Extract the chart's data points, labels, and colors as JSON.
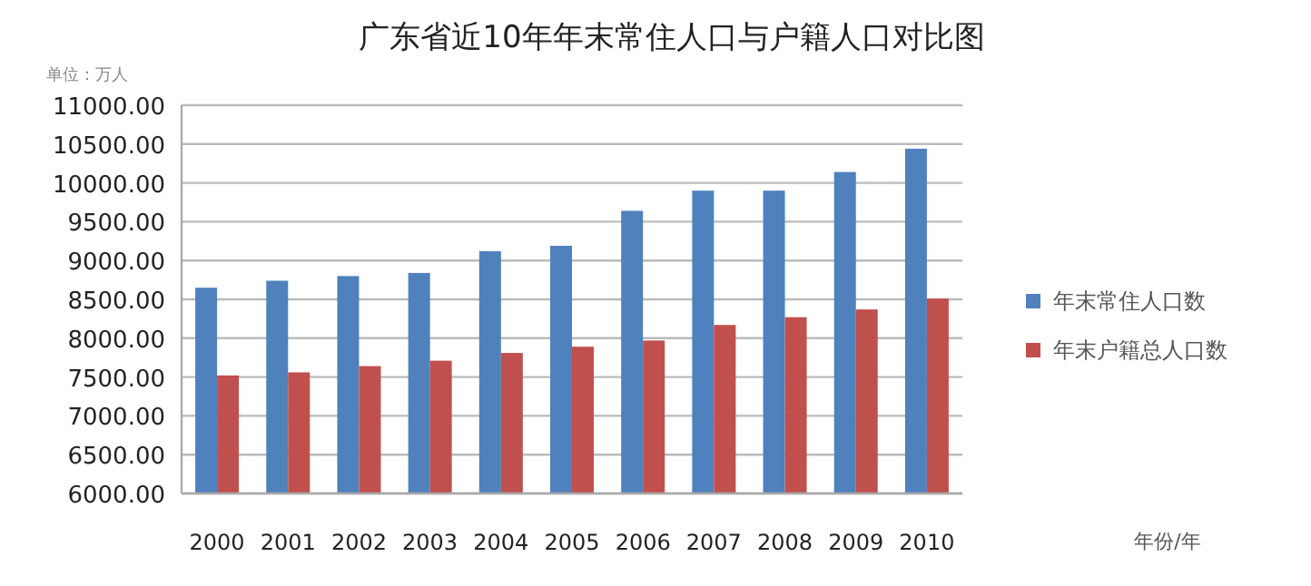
{
  "chart_data": {
    "type": "bar",
    "title": "广东省近10年年末常住人口与户籍人口对比图",
    "ylabel": "单位：万人",
    "annotations": [
      "年份/年"
    ],
    "categories": [
      "2000",
      "2001",
      "2002",
      "2003",
      "2004",
      "2005",
      "2006",
      "2007",
      "2008",
      "2009",
      "2010"
    ],
    "series": [
      {
        "name": "年末常住人口数",
        "color": "#4f81bd",
        "values": [
          8650,
          8740,
          8800,
          8840,
          9120,
          9190,
          9640,
          9900,
          9900,
          10140,
          10440
        ]
      },
      {
        "name": "年末户籍总人口数",
        "color": "#c0504d",
        "values": [
          7520,
          7560,
          7640,
          7710,
          7810,
          7890,
          7970,
          8170,
          8270,
          8370,
          8510
        ]
      }
    ],
    "ylim": [
      6000,
      11000
    ],
    "yticks": [
      {
        "value": 6000,
        "label": "6000.00"
      },
      {
        "value": 6500,
        "label": "6500.00"
      },
      {
        "value": 7000,
        "label": "7000.00"
      },
      {
        "value": 7500,
        "label": "7500.00"
      },
      {
        "value": 8000,
        "label": "8000.00"
      },
      {
        "value": 8500,
        "label": "8500.00"
      },
      {
        "value": 9000,
        "label": "9000.00"
      },
      {
        "value": 9500,
        "label": "9500.00"
      },
      {
        "value": 10000,
        "label": "10000.00"
      },
      {
        "value": 10500,
        "label": "10500.00"
      },
      {
        "value": 11000,
        "label": "11000.00"
      }
    ],
    "grid": "y",
    "legend": "right"
  }
}
